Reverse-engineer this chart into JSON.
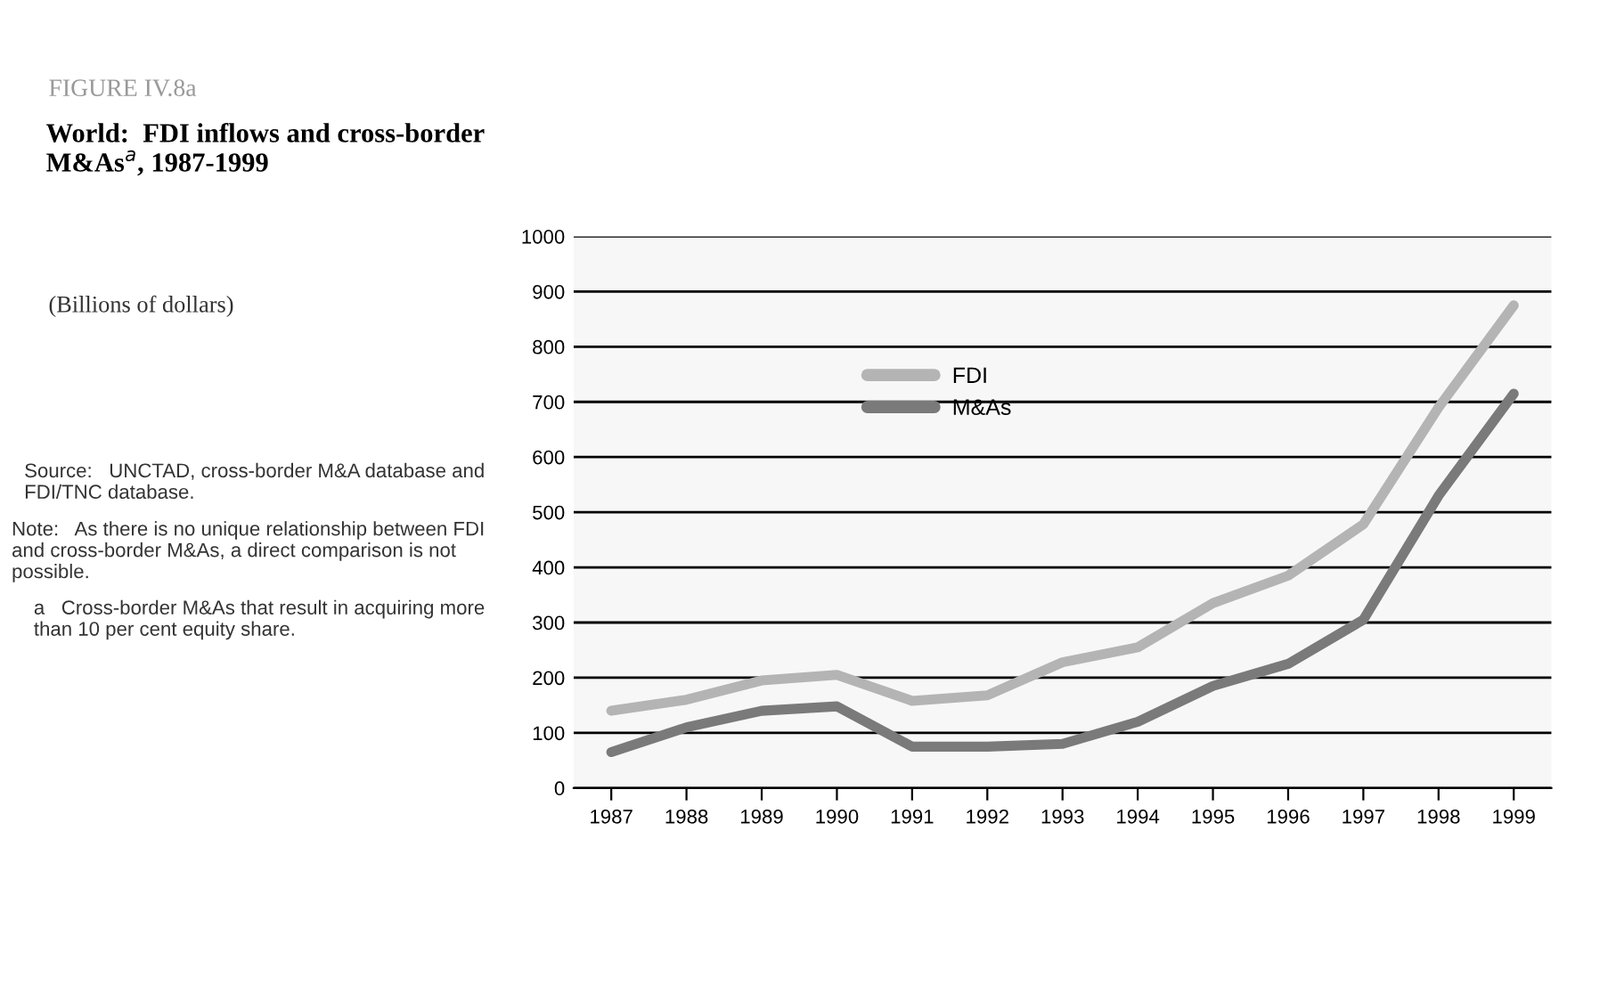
{
  "chart_data": {
    "type": "line",
    "title": "World:  FDI inflows and cross-border M&As$^{a}$, 1987-1999",
    "subtitle": "(Billions of dollars)",
    "annotations": [
      "FIGURE IV.8a",
      "Source:   UNCTAD, cross-border M&A database and FDI/TNC database.",
      "Note:   As there is no unique relationship between FDI and cross-border M&As, a direct comparison is not possible.",
      "a   Cross-border M&As that result in acquiring more than 10 per cent equity share."
    ],
    "categories": [
      "1987",
      "1988",
      "1989",
      "1990",
      "1991",
      "1992",
      "1993",
      "1994",
      "1995",
      "1996",
      "1997",
      "1998",
      "1999"
    ],
    "series": [
      {
        "name": "FDI",
        "color": "#b4b4b4",
        "values": [
          140,
          160,
          195,
          205,
          158,
          168,
          228,
          255,
          335,
          385,
          478,
          690,
          875
        ]
      },
      {
        "name": "M&As",
        "color": "#7a7a7a",
        "values": [
          65,
          110,
          140,
          148,
          75,
          75,
          80,
          120,
          185,
          225,
          305,
          530,
          715
        ]
      }
    ],
    "ylim": [
      0,
      1000
    ],
    "yticks": [
      0,
      100,
      200,
      300,
      400,
      500,
      600,
      700,
      800,
      900,
      1000
    ],
    "grid": "y",
    "legend": "top left",
    "marker": "none",
    "line_style": "solid"
  }
}
